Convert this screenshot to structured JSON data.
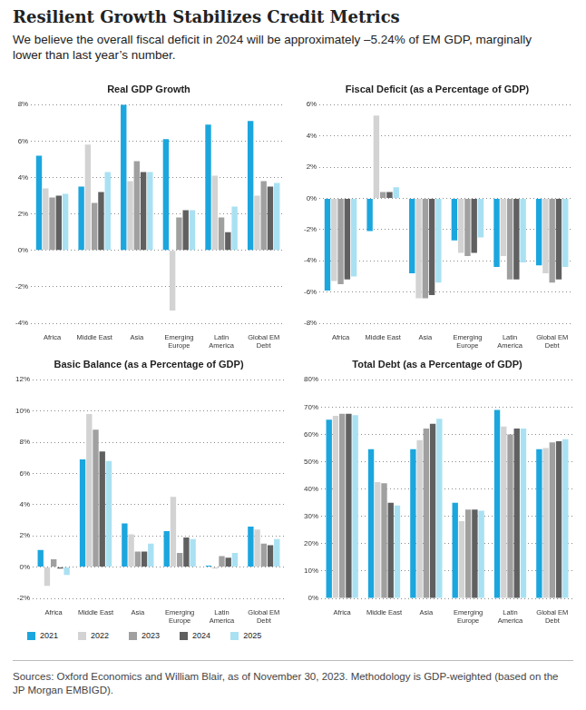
{
  "title": "Resilient Growth Stabilizes Credit Metrics",
  "subtitle": "We believe the overall fiscal deficit in 2024 will be approximately –5.24% of EM GDP, marginally lower than last year’s number.",
  "source": "Sources: Oxford Economics and William Blair, as of November 30, 2023. Methodology is GDP-weighted (based on the JP Morgan EMBIGD).",
  "chart_data": [
    {
      "type": "bar",
      "title": "Real GDP Growth",
      "categories": [
        "Africa",
        "Middle East",
        "Asia",
        "Emerging Europe",
        "Latin America",
        "Global EM Debt"
      ],
      "series": [
        {
          "name": "2021",
          "color": "#1ba6de",
          "values": [
            5.2,
            3.5,
            8.0,
            6.1,
            6.9,
            7.1
          ]
        },
        {
          "name": "2022",
          "color": "#d3d3d3",
          "values": [
            3.4,
            5.8,
            3.8,
            -3.3,
            4.1,
            3.0
          ]
        },
        {
          "name": "2023",
          "color": "#a0a0a0",
          "values": [
            2.9,
            2.6,
            4.9,
            1.8,
            1.8,
            3.8
          ]
        },
        {
          "name": "2024",
          "color": "#606060",
          "values": [
            3.0,
            3.2,
            4.3,
            2.2,
            1.0,
            3.5
          ]
        },
        {
          "name": "2025",
          "color": "#a9e1f2",
          "values": [
            3.1,
            4.3,
            4.3,
            2.2,
            2.4,
            3.7
          ]
        }
      ],
      "ylim": [
        -4,
        8
      ],
      "yticks": [
        {
          "value": -4,
          "label": "-4%"
        },
        {
          "value": -2,
          "label": "-2%"
        },
        {
          "value": 0,
          "label": "0%"
        },
        {
          "value": 2,
          "label": "2%"
        },
        {
          "value": 4,
          "label": "4%"
        },
        {
          "value": 6,
          "label": "6%"
        },
        {
          "value": 8,
          "label": "8%"
        }
      ],
      "grid": true
    },
    {
      "type": "bar",
      "title": "Fiscal Deficit (as a Percentage of GDP)",
      "categories": [
        "Africa",
        "Middle East",
        "Asia",
        "Emerging Europe",
        "Latin America",
        "Global EM Debt"
      ],
      "series": [
        {
          "name": "2021",
          "color": "#1ba6de",
          "values": [
            -5.9,
            -2.1,
            -4.8,
            -2.7,
            -4.4,
            -4.3
          ]
        },
        {
          "name": "2022",
          "color": "#d3d3d3",
          "values": [
            -5.3,
            5.3,
            -6.4,
            -3.5,
            -3.7,
            -4.8
          ]
        },
        {
          "name": "2023",
          "color": "#a0a0a0",
          "values": [
            -5.5,
            0.4,
            -6.4,
            -3.7,
            -5.2,
            -5.4
          ]
        },
        {
          "name": "2024",
          "color": "#606060",
          "values": [
            -5.2,
            0.4,
            -6.2,
            -3.5,
            -5.2,
            -5.2
          ]
        },
        {
          "name": "2025",
          "color": "#a9e1f2",
          "values": [
            -5.0,
            0.7,
            -5.4,
            -2.5,
            -4.1,
            -4.4
          ]
        }
      ],
      "ylim": [
        -8,
        6
      ],
      "yticks": [
        {
          "value": -8,
          "label": "-8%"
        },
        {
          "value": -6,
          "label": "-6%"
        },
        {
          "value": -4,
          "label": "-4%"
        },
        {
          "value": -2,
          "label": "-2%"
        },
        {
          "value": 0,
          "label": "0%"
        },
        {
          "value": 2,
          "label": "2%"
        },
        {
          "value": 4,
          "label": "4%"
        },
        {
          "value": 6,
          "label": "6%"
        }
      ],
      "grid": true
    },
    {
      "type": "bar",
      "title": "Basic Balance (as a Percentage of GDP)",
      "categories": [
        "Africa",
        "Middle East",
        "Asia",
        "Emerging Europe",
        "Latin America",
        "Global EM Debt"
      ],
      "series": [
        {
          "name": "2021",
          "color": "#1ba6de",
          "values": [
            1.1,
            6.9,
            2.8,
            2.3,
            0.1,
            2.6
          ]
        },
        {
          "name": "2022",
          "color": "#d3d3d3",
          "values": [
            -1.2,
            9.8,
            2.1,
            4.5,
            -0.1,
            2.4
          ]
        },
        {
          "name": "2023",
          "color": "#a0a0a0",
          "values": [
            0.5,
            8.8,
            1.0,
            0.9,
            0.7,
            1.5
          ]
        },
        {
          "name": "2024",
          "color": "#606060",
          "values": [
            -0.1,
            7.4,
            1.0,
            1.9,
            0.6,
            1.4
          ]
        },
        {
          "name": "2025",
          "color": "#a9e1f2",
          "values": [
            -0.5,
            6.8,
            1.5,
            1.8,
            0.9,
            1.8
          ]
        }
      ],
      "ylim": [
        -2,
        12
      ],
      "yticks": [
        {
          "value": -2,
          "label": "-2%"
        },
        {
          "value": 0,
          "label": "0%"
        },
        {
          "value": 2,
          "label": "2%"
        },
        {
          "value": 4,
          "label": "4%"
        },
        {
          "value": 6,
          "label": "6%"
        },
        {
          "value": 8,
          "label": "8%"
        },
        {
          "value": 10,
          "label": "10%"
        },
        {
          "value": 12,
          "label": "12%"
        }
      ],
      "grid": true
    },
    {
      "type": "bar",
      "title": "Total Debt (as a Percentage of GDP)",
      "categories": [
        "Africa",
        "Middle East",
        "Asia",
        "Emerging Europe",
        "Latin America",
        "Global EM Debt"
      ],
      "series": [
        {
          "name": "2021",
          "color": "#1ba6de",
          "values": [
            65.4,
            54.6,
            54.6,
            35.0,
            68.9,
            54.6
          ]
        },
        {
          "name": "2022",
          "color": "#d3d3d3",
          "values": [
            66.8,
            42.5,
            57.9,
            28.2,
            62.9,
            55.0
          ]
        },
        {
          "name": "2023",
          "color": "#a0a0a0",
          "values": [
            67.5,
            42.1,
            62.1,
            32.5,
            60.0,
            57.1
          ]
        },
        {
          "name": "2024",
          "color": "#606060",
          "values": [
            67.5,
            35.0,
            63.9,
            32.5,
            62.1,
            57.5
          ]
        },
        {
          "name": "2025",
          "color": "#a9e1f2",
          "values": [
            67.0,
            34.0,
            65.7,
            32.1,
            62.1,
            58.2
          ]
        }
      ],
      "ylim": [
        0,
        80
      ],
      "yticks": [
        {
          "value": 0,
          "label": "0%"
        },
        {
          "value": 10,
          "label": "10%"
        },
        {
          "value": 20,
          "label": "20%"
        },
        {
          "value": 30,
          "label": "30%"
        },
        {
          "value": 40,
          "label": "40%"
        },
        {
          "value": 50,
          "label": "50%"
        },
        {
          "value": 60,
          "label": "60%"
        },
        {
          "value": 70,
          "label": "70%"
        },
        {
          "value": 80,
          "label": "80%"
        }
      ],
      "grid": true
    }
  ]
}
